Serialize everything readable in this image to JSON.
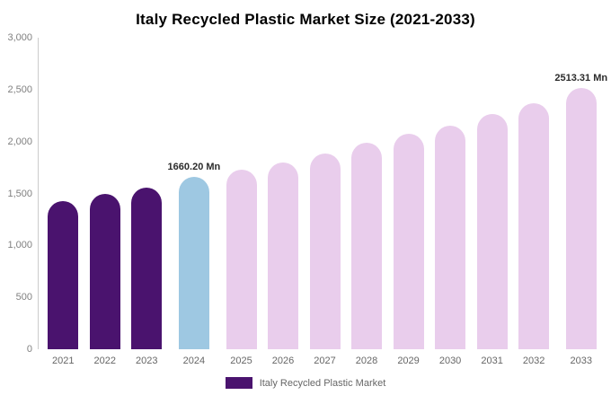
{
  "title": "Italy Recycled Plastic Market Size (2021-2033)",
  "legend": {
    "label": "Italy Recycled Plastic Market",
    "swatch_color": "#4a136e"
  },
  "chart_data": {
    "type": "bar",
    "title": "Italy Recycled Plastic Market Size (2021-2033)",
    "xlabel": "",
    "ylabel": "",
    "ylim": [
      0,
      3000
    ],
    "grid": false,
    "legend_position": "bottom",
    "yticks": [
      {
        "value": 0,
        "label": "0"
      },
      {
        "value": 500,
        "label": "500"
      },
      {
        "value": 1000,
        "label": "1,000"
      },
      {
        "value": 1500,
        "label": "1,500"
      },
      {
        "value": 2000,
        "label": "2,000"
      },
      {
        "value": 2500,
        "label": "2,500"
      },
      {
        "value": 3000,
        "label": "3,000"
      }
    ],
    "colors": {
      "historical": "#4a136e",
      "base_year": "#9ec8e2",
      "forecast": "#e9cdec"
    },
    "bars": [
      {
        "year": "2021",
        "value": 1425,
        "color": "#4a136e",
        "label": ""
      },
      {
        "year": "2022",
        "value": 1495,
        "color": "#4a136e",
        "label": ""
      },
      {
        "year": "2023",
        "value": 1555,
        "color": "#4a136e",
        "label": ""
      },
      {
        "year": "2024",
        "value": 1660.2,
        "color": "#9ec8e2",
        "label": "1660.20 Mn"
      },
      {
        "year": "2025",
        "value": 1725,
        "color": "#e9cdec",
        "label": ""
      },
      {
        "year": "2026",
        "value": 1800,
        "color": "#e9cdec",
        "label": ""
      },
      {
        "year": "2027",
        "value": 1885,
        "color": "#e9cdec",
        "label": ""
      },
      {
        "year": "2028",
        "value": 1985,
        "color": "#e9cdec",
        "label": ""
      },
      {
        "year": "2029",
        "value": 2075,
        "color": "#e9cdec",
        "label": ""
      },
      {
        "year": "2030",
        "value": 2155,
        "color": "#e9cdec",
        "label": ""
      },
      {
        "year": "2031",
        "value": 2265,
        "color": "#e9cdec",
        "label": ""
      },
      {
        "year": "2032",
        "value": 2370,
        "color": "#e9cdec",
        "label": ""
      },
      {
        "year": "2033",
        "value": 2513.31,
        "color": "#e9cdec",
        "label": "2513.31 Mn"
      }
    ]
  }
}
